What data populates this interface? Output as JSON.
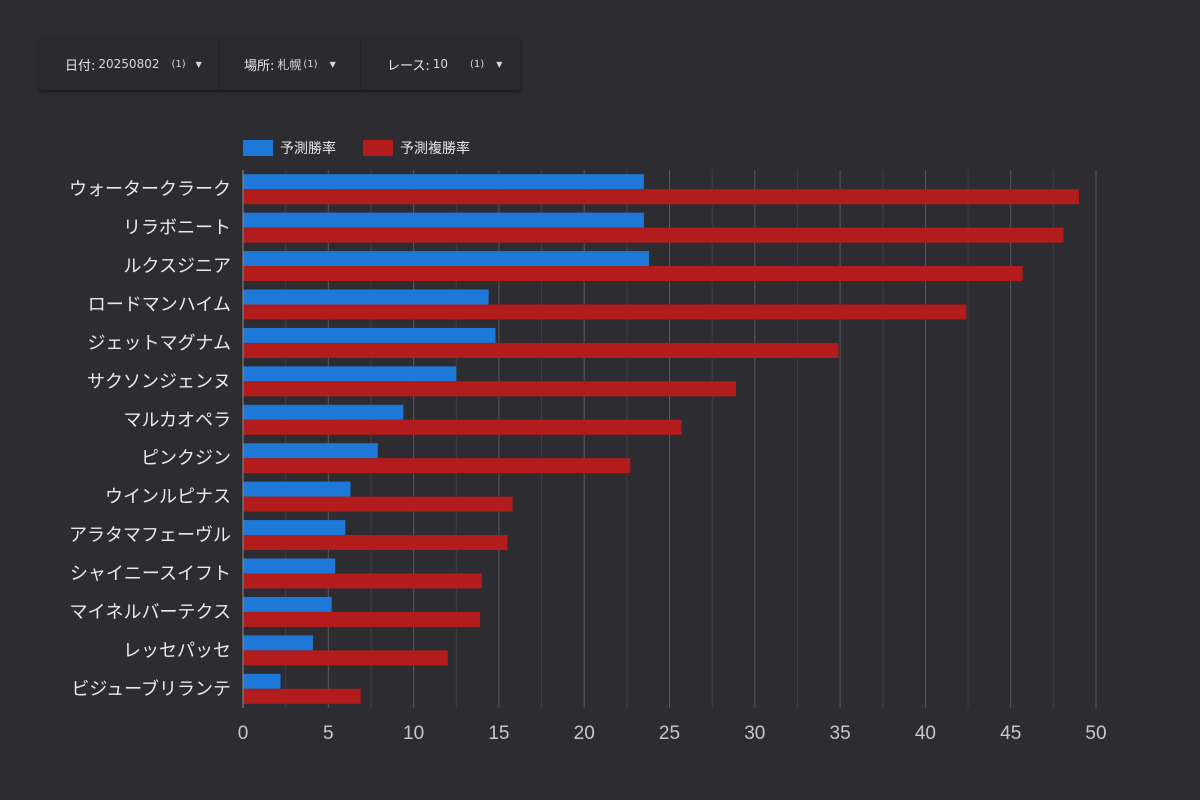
{
  "filters": {
    "date": {
      "label": "日付:",
      "value": "20250802",
      "count": "(1)"
    },
    "place": {
      "label": "場所:",
      "value": "札幌",
      "count": "(1)"
    },
    "race": {
      "label": "レース:",
      "value": "10",
      "count": "(1)"
    }
  },
  "chart_data": {
    "type": "bar",
    "orientation": "horizontal",
    "categories": [
      "ウォータークラーク",
      "リラボニート",
      "ルクスジニア",
      "ロードマンハイム",
      "ジェットマグナム",
      "サクソンジェンヌ",
      "マルカオペラ",
      "ピンクジン",
      "ウインルピナス",
      "アラタマフェーヴル",
      "シャイニースイフト",
      "マイネルバーテクス",
      "レッセパッセ",
      "ビジューブリランテ"
    ],
    "series": [
      {
        "name": "予測勝率",
        "color": "#1e78d7",
        "values": [
          23.5,
          23.5,
          23.8,
          14.4,
          14.8,
          12.5,
          9.4,
          7.9,
          6.3,
          6.0,
          5.4,
          5.2,
          4.1,
          2.2
        ]
      },
      {
        "name": "予測複勝率",
        "color": "#b31c1c",
        "values": [
          49.0,
          48.1,
          45.7,
          42.4,
          34.9,
          28.9,
          25.7,
          22.7,
          15.8,
          15.5,
          14.0,
          13.9,
          12.0,
          6.9
        ]
      }
    ],
    "xlim": [
      0,
      50
    ],
    "xticks": [
      0,
      5,
      10,
      15,
      20,
      25,
      30,
      35,
      40,
      45,
      50
    ],
    "grid": true,
    "minor_grid": true,
    "legend_position": "top-left"
  }
}
